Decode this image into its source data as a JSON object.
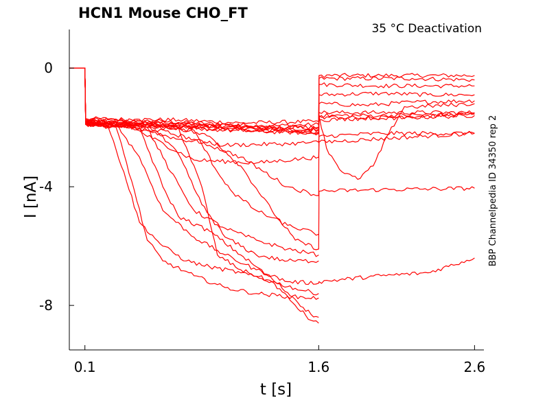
{
  "chart_data": {
    "type": "line",
    "title": "HCN1  Mouse  CHO_FT",
    "subtitle": "35 °C  Deactivation",
    "side_label": "BBP Channelpedia ID 34350 rep 2",
    "xlabel": "t [s]",
    "ylabel": "I [nA]",
    "xlim": [
      0.0,
      2.66
    ],
    "ylim": [
      -9.5,
      1.3
    ],
    "x_ticks": [
      0.1,
      1.6,
      2.6
    ],
    "x_tick_labels": [
      "0.1",
      "1.6",
      "2.6"
    ],
    "y_ticks": [
      0,
      -4,
      -8
    ],
    "y_tick_labels": [
      "0",
      "-4",
      "-8"
    ],
    "grid": false,
    "line_color": "#ff0000",
    "series": [
      {
        "pts": [
          [
            0,
            0
          ],
          [
            0.1,
            0
          ],
          [
            0.105,
            -1.75
          ],
          [
            0.3,
            -1.75
          ],
          [
            0.6,
            -1.8
          ],
          [
            1.0,
            -1.9
          ],
          [
            1.3,
            -1.95
          ],
          [
            1.6,
            -1.9
          ],
          [
            1.602,
            -0.25
          ],
          [
            2.0,
            -0.25
          ],
          [
            2.6,
            -0.25
          ]
        ]
      },
      {
        "pts": [
          [
            0,
            0
          ],
          [
            0.1,
            0
          ],
          [
            0.105,
            -1.7
          ],
          [
            0.3,
            -1.72
          ],
          [
            0.7,
            -1.75
          ],
          [
            1.1,
            -1.85
          ],
          [
            1.6,
            -1.8
          ],
          [
            1.602,
            -0.35
          ],
          [
            2.2,
            -0.35
          ],
          [
            2.6,
            -0.4
          ]
        ]
      },
      {
        "pts": [
          [
            0,
            0
          ],
          [
            0.1,
            0
          ],
          [
            0.105,
            -1.8
          ],
          [
            0.3,
            -1.85
          ],
          [
            0.6,
            -1.9
          ],
          [
            1.0,
            -1.95
          ],
          [
            1.5,
            -2.1
          ],
          [
            1.6,
            -2.05
          ],
          [
            1.602,
            -0.55
          ],
          [
            2.0,
            -0.6
          ],
          [
            2.6,
            -0.6
          ]
        ]
      },
      {
        "pts": [
          [
            0,
            0
          ],
          [
            0.1,
            0
          ],
          [
            0.105,
            -1.75
          ],
          [
            0.4,
            -1.8
          ],
          [
            0.9,
            -1.9
          ],
          [
            1.4,
            -2.0
          ],
          [
            1.6,
            -2.0
          ],
          [
            1.602,
            -0.9
          ],
          [
            2.0,
            -0.85
          ],
          [
            2.3,
            -0.9
          ],
          [
            2.6,
            -0.9
          ]
        ]
      },
      {
        "pts": [
          [
            0,
            0
          ],
          [
            0.1,
            0
          ],
          [
            0.105,
            -1.8
          ],
          [
            0.5,
            -1.85
          ],
          [
            1.0,
            -2.0
          ],
          [
            1.6,
            -2.1
          ],
          [
            1.602,
            -1.2
          ],
          [
            1.9,
            -1.25
          ],
          [
            2.2,
            -1.15
          ],
          [
            2.6,
            -1.1
          ]
        ]
      },
      {
        "pts": [
          [
            0,
            0
          ],
          [
            0.1,
            0
          ],
          [
            0.105,
            -1.85
          ],
          [
            0.5,
            -1.9
          ],
          [
            1.0,
            -2.05
          ],
          [
            1.6,
            -2.15
          ],
          [
            1.602,
            -1.5
          ],
          [
            2.0,
            -1.5
          ],
          [
            2.6,
            -1.5
          ]
        ]
      },
      {
        "pts": [
          [
            0,
            0
          ],
          [
            0.1,
            0
          ],
          [
            0.105,
            -1.9
          ],
          [
            0.6,
            -1.95
          ],
          [
            1.0,
            -2.1
          ],
          [
            1.6,
            -2.2
          ],
          [
            1.602,
            -1.6
          ],
          [
            2.0,
            -1.6
          ],
          [
            2.6,
            -1.55
          ]
        ]
      },
      {
        "pts": [
          [
            0,
            0
          ],
          [
            0.1,
            0
          ],
          [
            0.105,
            -1.9
          ],
          [
            0.7,
            -2.0
          ],
          [
            1.2,
            -2.1
          ],
          [
            1.6,
            -2.2
          ],
          [
            1.602,
            -1.65
          ],
          [
            2.0,
            -1.7
          ],
          [
            2.6,
            -1.6
          ]
        ]
      },
      {
        "pts": [
          [
            0,
            0
          ],
          [
            0.1,
            0
          ],
          [
            0.105,
            -1.85
          ],
          [
            0.5,
            -1.9
          ],
          [
            1.0,
            -2.0
          ],
          [
            1.6,
            -2.0
          ],
          [
            1.602,
            -1.75
          ],
          [
            2.6,
            -1.55
          ]
        ]
      },
      {
        "pts": [
          [
            0,
            0
          ],
          [
            0.1,
            0
          ],
          [
            0.105,
            -1.8
          ],
          [
            0.3,
            -1.85
          ],
          [
            0.5,
            -2.1
          ],
          [
            0.7,
            -2.4
          ],
          [
            1.0,
            -2.6
          ],
          [
            1.4,
            -2.55
          ],
          [
            1.6,
            -2.5
          ],
          [
            1.602,
            -2.3
          ],
          [
            2.0,
            -2.2
          ],
          [
            2.6,
            -2.2
          ]
        ]
      },
      {
        "pts": [
          [
            0,
            0
          ],
          [
            0.1,
            0
          ],
          [
            0.105,
            -1.9
          ],
          [
            0.4,
            -2.0
          ],
          [
            0.8,
            -3.1
          ],
          [
            1.2,
            -3.2
          ],
          [
            1.6,
            -3.0
          ],
          [
            1.602,
            -2.5
          ],
          [
            2.6,
            -2.2
          ]
        ]
      },
      {
        "pts": [
          [
            0,
            0
          ],
          [
            0.1,
            0
          ],
          [
            0.105,
            -1.9
          ],
          [
            0.5,
            -2.0
          ],
          [
            0.8,
            -2.4
          ],
          [
            1.1,
            -3.0
          ],
          [
            1.4,
            -4.0
          ],
          [
            1.6,
            -4.3
          ],
          [
            1.602,
            -1.6
          ],
          [
            1.65,
            -2.7
          ],
          [
            1.75,
            -3.5
          ],
          [
            1.85,
            -3.75
          ],
          [
            1.95,
            -3.3
          ],
          [
            2.05,
            -2.2
          ],
          [
            2.15,
            -1.3
          ],
          [
            2.25,
            -1.3
          ],
          [
            2.6,
            -1.2
          ]
        ]
      },
      {
        "pts": [
          [
            0,
            0
          ],
          [
            0.1,
            0
          ],
          [
            0.105,
            -1.8
          ],
          [
            0.6,
            -1.9
          ],
          [
            0.9,
            -2.3
          ],
          [
            1.1,
            -3.3
          ],
          [
            1.3,
            -4.8
          ],
          [
            1.45,
            -5.8
          ],
          [
            1.6,
            -6.1
          ],
          [
            1.602,
            -4.15
          ],
          [
            2.0,
            -4.1
          ],
          [
            2.6,
            -4.05
          ]
        ]
      },
      {
        "pts": [
          [
            0,
            0
          ],
          [
            0.1,
            0
          ],
          [
            0.105,
            -1.85
          ],
          [
            0.3,
            -1.9
          ],
          [
            0.45,
            -3.0
          ],
          [
            0.6,
            -4.8
          ],
          [
            0.8,
            -5.7
          ],
          [
            1.0,
            -6.3
          ],
          [
            1.2,
            -6.8
          ],
          [
            1.4,
            -7.2
          ],
          [
            1.6,
            -7.25
          ],
          [
            1.602,
            -7.2
          ],
          [
            2.0,
            -7.0
          ],
          [
            2.3,
            -6.9
          ],
          [
            2.6,
            -6.4
          ]
        ]
      },
      {
        "pts": [
          [
            0,
            0
          ],
          [
            0.1,
            0
          ],
          [
            0.105,
            -1.8
          ],
          [
            0.25,
            -2.0
          ],
          [
            0.35,
            -3.5
          ],
          [
            0.45,
            -5.2
          ],
          [
            0.6,
            -6.0
          ],
          [
            0.75,
            -6.5
          ],
          [
            0.9,
            -6.7
          ],
          [
            1.1,
            -6.9
          ],
          [
            1.3,
            -7.2
          ],
          [
            1.5,
            -7.5
          ],
          [
            1.6,
            -7.6
          ]
        ]
      },
      {
        "pts": [
          [
            0,
            0
          ],
          [
            0.1,
            0
          ],
          [
            0.105,
            -1.85
          ],
          [
            0.3,
            -2.0
          ],
          [
            0.4,
            -3.8
          ],
          [
            0.5,
            -5.8
          ],
          [
            0.6,
            -6.5
          ],
          [
            0.8,
            -7.0
          ],
          [
            1.0,
            -7.4
          ],
          [
            1.2,
            -7.6
          ],
          [
            1.4,
            -7.7
          ],
          [
            1.6,
            -7.75
          ]
        ]
      },
      {
        "pts": [
          [
            0,
            0
          ],
          [
            0.1,
            0
          ],
          [
            0.105,
            -1.8
          ],
          [
            0.45,
            -2.0
          ],
          [
            0.6,
            -4.0
          ],
          [
            0.7,
            -5.0
          ],
          [
            0.9,
            -5.5
          ],
          [
            1.1,
            -6.3
          ],
          [
            1.3,
            -7.1
          ],
          [
            1.45,
            -7.8
          ],
          [
            1.55,
            -8.3
          ],
          [
            1.6,
            -8.4
          ]
        ]
      },
      {
        "pts": [
          [
            0,
            0
          ],
          [
            0.1,
            0
          ],
          [
            0.105,
            -1.85
          ],
          [
            0.5,
            -2.0
          ],
          [
            0.65,
            -3.5
          ],
          [
            0.8,
            -4.8
          ],
          [
            1.0,
            -5.4
          ],
          [
            1.2,
            -5.8
          ],
          [
            1.4,
            -6.1
          ],
          [
            1.6,
            -6.3
          ]
        ]
      },
      {
        "pts": [
          [
            0,
            0
          ],
          [
            0.1,
            0
          ],
          [
            0.105,
            -1.8
          ],
          [
            0.7,
            -2.0
          ],
          [
            0.85,
            -4.0
          ],
          [
            0.95,
            -6.3
          ],
          [
            1.1,
            -6.8
          ],
          [
            1.3,
            -7.2
          ],
          [
            1.45,
            -8.0
          ],
          [
            1.55,
            -8.5
          ],
          [
            1.6,
            -8.6
          ]
        ]
      },
      {
        "pts": [
          [
            0,
            0
          ],
          [
            0.1,
            0
          ],
          [
            0.105,
            -1.9
          ],
          [
            0.55,
            -2.1
          ],
          [
            0.7,
            -2.9
          ],
          [
            0.85,
            -4.6
          ],
          [
            1.0,
            -5.7
          ],
          [
            1.2,
            -6.3
          ],
          [
            1.4,
            -6.5
          ],
          [
            1.6,
            -6.5
          ]
        ]
      },
      {
        "pts": [
          [
            0,
            0
          ],
          [
            0.1,
            0
          ],
          [
            0.105,
            -1.85
          ],
          [
            0.8,
            -2.1
          ],
          [
            0.95,
            -3.5
          ],
          [
            1.05,
            -4.2
          ],
          [
            1.2,
            -4.8
          ],
          [
            1.4,
            -5.3
          ],
          [
            1.6,
            -5.6
          ]
        ]
      }
    ]
  }
}
